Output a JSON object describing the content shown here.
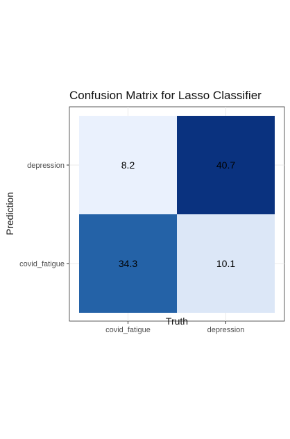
{
  "chart_data": {
    "type": "heatmap",
    "title": "Confusion Matrix for Lasso Classifier",
    "xlabel": "Truth",
    "ylabel": "Prediction",
    "x_categories": [
      "covid_fatigue",
      "depression"
    ],
    "y_categories": [
      "depression",
      "covid_fatigue"
    ],
    "cells": [
      {
        "x": "covid_fatigue",
        "y": "depression",
        "value": 8.2
      },
      {
        "x": "depression",
        "y": "depression",
        "value": 40.7
      },
      {
        "x": "covid_fatigue",
        "y": "covid_fatigue",
        "value": 34.3
      },
      {
        "x": "depression",
        "y": "covid_fatigue",
        "value": 10.1
      }
    ],
    "color_scale": {
      "low": "#eaf1fd",
      "high": "#0a327f",
      "mid": "#2463a8"
    },
    "grid": true,
    "legend": "none"
  }
}
